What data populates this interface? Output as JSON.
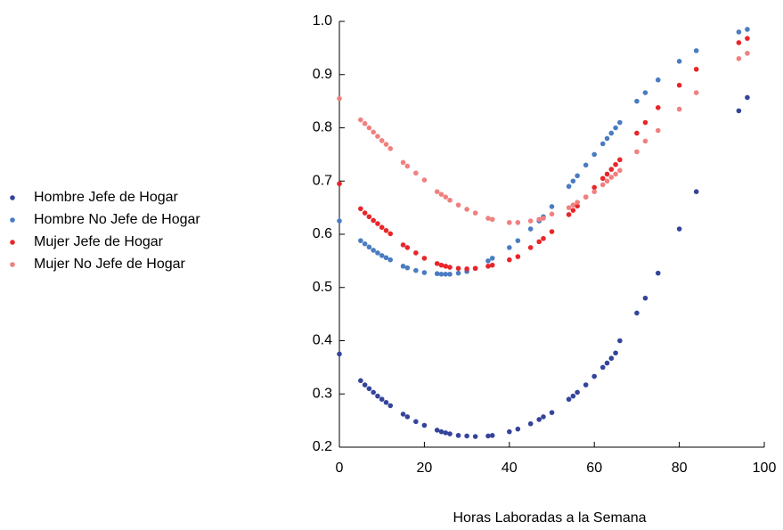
{
  "chart_data": {
    "type": "scatter",
    "x_label": "Horas Laboradas a la Semana",
    "x": [
      0,
      5,
      6,
      7,
      8,
      9,
      10,
      11,
      12,
      15,
      16,
      18,
      20,
      23,
      24,
      25,
      26,
      28,
      30,
      32,
      35,
      36,
      40,
      42,
      45,
      47,
      48,
      50,
      54,
      55,
      56,
      58,
      60,
      62,
      63,
      64,
      65,
      66,
      70,
      72,
      75,
      80,
      84,
      94,
      96
    ],
    "series": [
      {
        "name": "Hombre Jefe de Hogar",
        "color": "#34449a",
        "values": [
          0.375,
          0.325,
          0.317,
          0.31,
          0.303,
          0.296,
          0.29,
          0.284,
          0.278,
          0.262,
          0.257,
          0.248,
          0.241,
          0.232,
          0.229,
          0.227,
          0.225,
          0.222,
          0.221,
          0.22,
          0.221,
          0.222,
          0.229,
          0.234,
          0.244,
          0.252,
          0.257,
          0.265,
          0.29,
          0.296,
          0.303,
          0.317,
          0.333,
          0.35,
          0.358,
          0.367,
          0.377,
          0.4,
          0.452,
          0.48,
          0.527,
          0.61,
          0.68,
          0.832,
          0.857
        ]
      },
      {
        "name": "Hombre No Jefe de Hogar",
        "color": "#4a7cc0",
        "values": [
          0.625,
          0.588,
          0.582,
          0.576,
          0.57,
          0.565,
          0.56,
          0.556,
          0.552,
          0.54,
          0.537,
          0.532,
          0.528,
          0.526,
          0.525,
          0.525,
          0.525,
          0.527,
          0.53,
          0.536,
          0.55,
          0.555,
          0.575,
          0.588,
          0.61,
          0.625,
          0.633,
          0.652,
          0.69,
          0.7,
          0.71,
          0.73,
          0.75,
          0.77,
          0.78,
          0.79,
          0.8,
          0.81,
          0.85,
          0.866,
          0.89,
          0.925,
          0.945,
          0.98,
          0.985
        ]
      },
      {
        "name": "Mujer Jefe de Hogar",
        "color": "#e8262a",
        "values": [
          0.695,
          0.648,
          0.64,
          0.633,
          0.626,
          0.62,
          0.613,
          0.607,
          0.601,
          0.58,
          0.575,
          0.565,
          0.555,
          0.545,
          0.542,
          0.54,
          0.538,
          0.536,
          0.535,
          0.536,
          0.54,
          0.542,
          0.552,
          0.558,
          0.575,
          0.586,
          0.592,
          0.605,
          0.637,
          0.645,
          0.653,
          0.67,
          0.688,
          0.705,
          0.713,
          0.722,
          0.731,
          0.74,
          0.79,
          0.81,
          0.838,
          0.88,
          0.91,
          0.96,
          0.968
        ]
      },
      {
        "name": "Mujer No Jefe de Hogar",
        "color": "#f08080",
        "values": [
          0.855,
          0.815,
          0.808,
          0.8,
          0.792,
          0.784,
          0.776,
          0.769,
          0.761,
          0.735,
          0.728,
          0.715,
          0.702,
          0.68,
          0.675,
          0.67,
          0.664,
          0.655,
          0.647,
          0.64,
          0.63,
          0.628,
          0.622,
          0.622,
          0.625,
          0.628,
          0.63,
          0.638,
          0.65,
          0.655,
          0.66,
          0.67,
          0.68,
          0.693,
          0.7,
          0.707,
          0.713,
          0.72,
          0.755,
          0.775,
          0.795,
          0.835,
          0.866,
          0.93,
          0.94
        ]
      }
    ],
    "xlim": [
      0,
      100
    ],
    "xticks": [
      0,
      20,
      40,
      60,
      80,
      100
    ],
    "ylim": [
      0.2,
      1
    ],
    "yticks": [
      0.2,
      0.3,
      0.4,
      0.5,
      0.6,
      0.7,
      0.8,
      0.9,
      {
        "value": 1,
        "label": "1.0"
      }
    ],
    "legend": "left",
    "grid": false
  }
}
